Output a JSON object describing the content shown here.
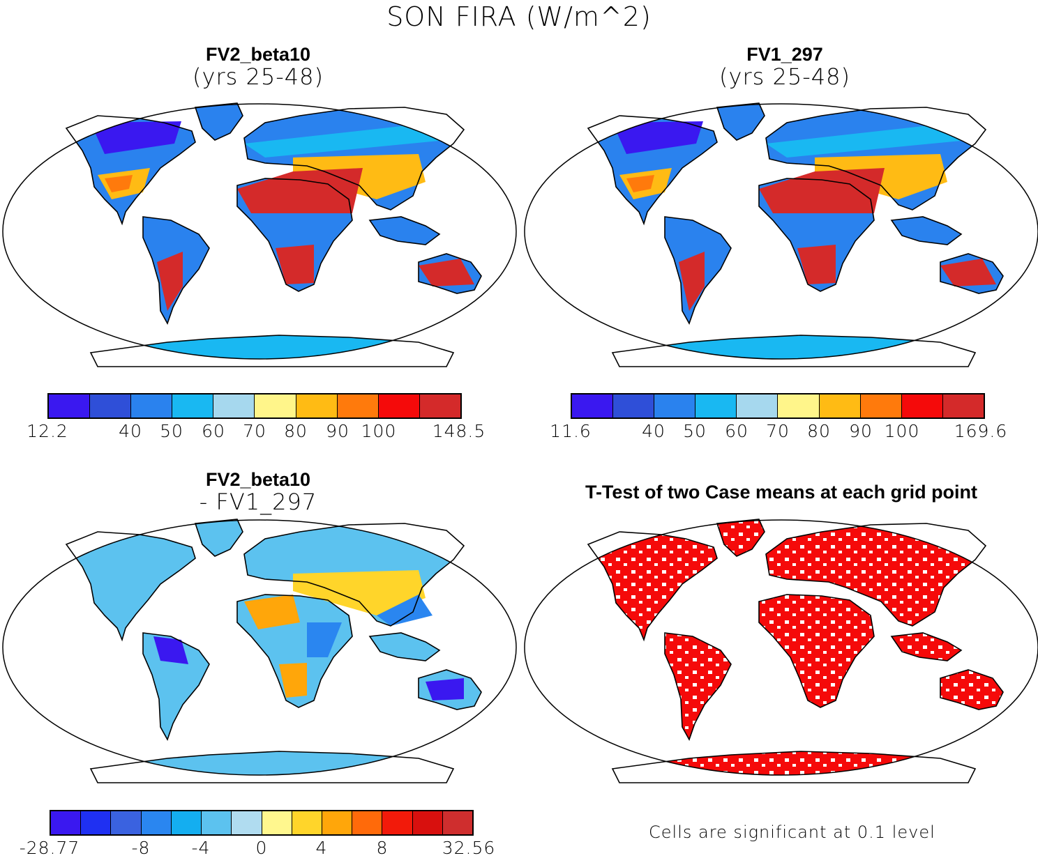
{
  "title": "SON FIRA (W/m^2)",
  "panels": {
    "tl": {
      "line1": "FV2_beta10",
      "line2": "(yrs 25-48)"
    },
    "tr": {
      "line1": "FV1_297",
      "line2": "(yrs 25-48)"
    },
    "bl": {
      "line1": "FV2_beta10",
      "line2": "- FV1_297"
    },
    "br": {
      "line1": "T-Test of two Case means at each grid point",
      "note": "Cells are significant at 0.1 level"
    }
  },
  "colorbars": {
    "tl": {
      "colors": [
        "#3a18f0",
        "#2f4fd8",
        "#2a82ee",
        "#19b8f2",
        "#a6d8ee",
        "#fff58a",
        "#ffbb14",
        "#ff7a0c",
        "#f50a0a",
        "#d42a2a"
      ],
      "ticks": [
        "12.2",
        "40",
        "50",
        "60",
        "70",
        "80",
        "90",
        "100",
        "148.5"
      ]
    },
    "tr": {
      "colors": [
        "#3a18f0",
        "#2f4fd8",
        "#2a82ee",
        "#19b8f2",
        "#a6d8ee",
        "#fff58a",
        "#ffbb14",
        "#ff7a0c",
        "#f50a0a",
        "#d42a2a"
      ],
      "ticks": [
        "11.6",
        "40",
        "50",
        "60",
        "70",
        "80",
        "90",
        "100",
        "169.6"
      ]
    },
    "bl": {
      "colors": [
        "#3a18f0",
        "#1f30f2",
        "#3a62e0",
        "#2a86f0",
        "#14aef0",
        "#5cc2ef",
        "#b0dcf0",
        "#fff78e",
        "#ffd52a",
        "#ffa60a",
        "#ff6a0a",
        "#f21a0a",
        "#d8100e",
        "#cf2e2e"
      ],
      "ticks": [
        "-28.77",
        "-8",
        "-4",
        "0",
        "4",
        "8",
        "32.56"
      ]
    }
  },
  "icons": {
    "map": "world-map-robinson-icon"
  }
}
